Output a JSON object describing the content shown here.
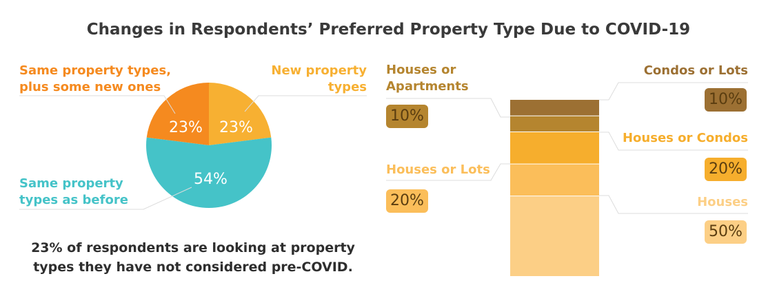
{
  "title": "Changes in Respondents’ Preferred Property Type Due to COVID-19",
  "note": "23% of respondents are looking at property types they have not considered pre-COVID.",
  "chart_data": [
    {
      "type": "pie",
      "slices": [
        {
          "label": "New property types",
          "value": 23,
          "value_label": "23%",
          "color": "#f7b032"
        },
        {
          "label": "Same property types as before",
          "value": 54,
          "value_label": "54%",
          "color": "#45c3c8"
        },
        {
          "label": "Same property types, plus some new ones",
          "value": 23,
          "value_label": "23%",
          "color": "#f58a1f"
        }
      ]
    },
    {
      "type": "bar",
      "stacked": true,
      "segments": [
        {
          "label": "Houses",
          "value": 50,
          "value_label": "50%",
          "color": "#fccf86"
        },
        {
          "label": "Houses or Lots",
          "value": 20,
          "value_label": "20%",
          "color": "#fbbe5a"
        },
        {
          "label": "Houses or Condos",
          "value": 20,
          "value_label": "20%",
          "color": "#f6ae2d"
        },
        {
          "label": "Houses or Apartments",
          "value": 10,
          "value_label": "10%",
          "color": "#b5852f"
        },
        {
          "label": "Condos or Lots",
          "value": 10,
          "value_label": "10%",
          "color": "#9c7033"
        }
      ]
    }
  ]
}
